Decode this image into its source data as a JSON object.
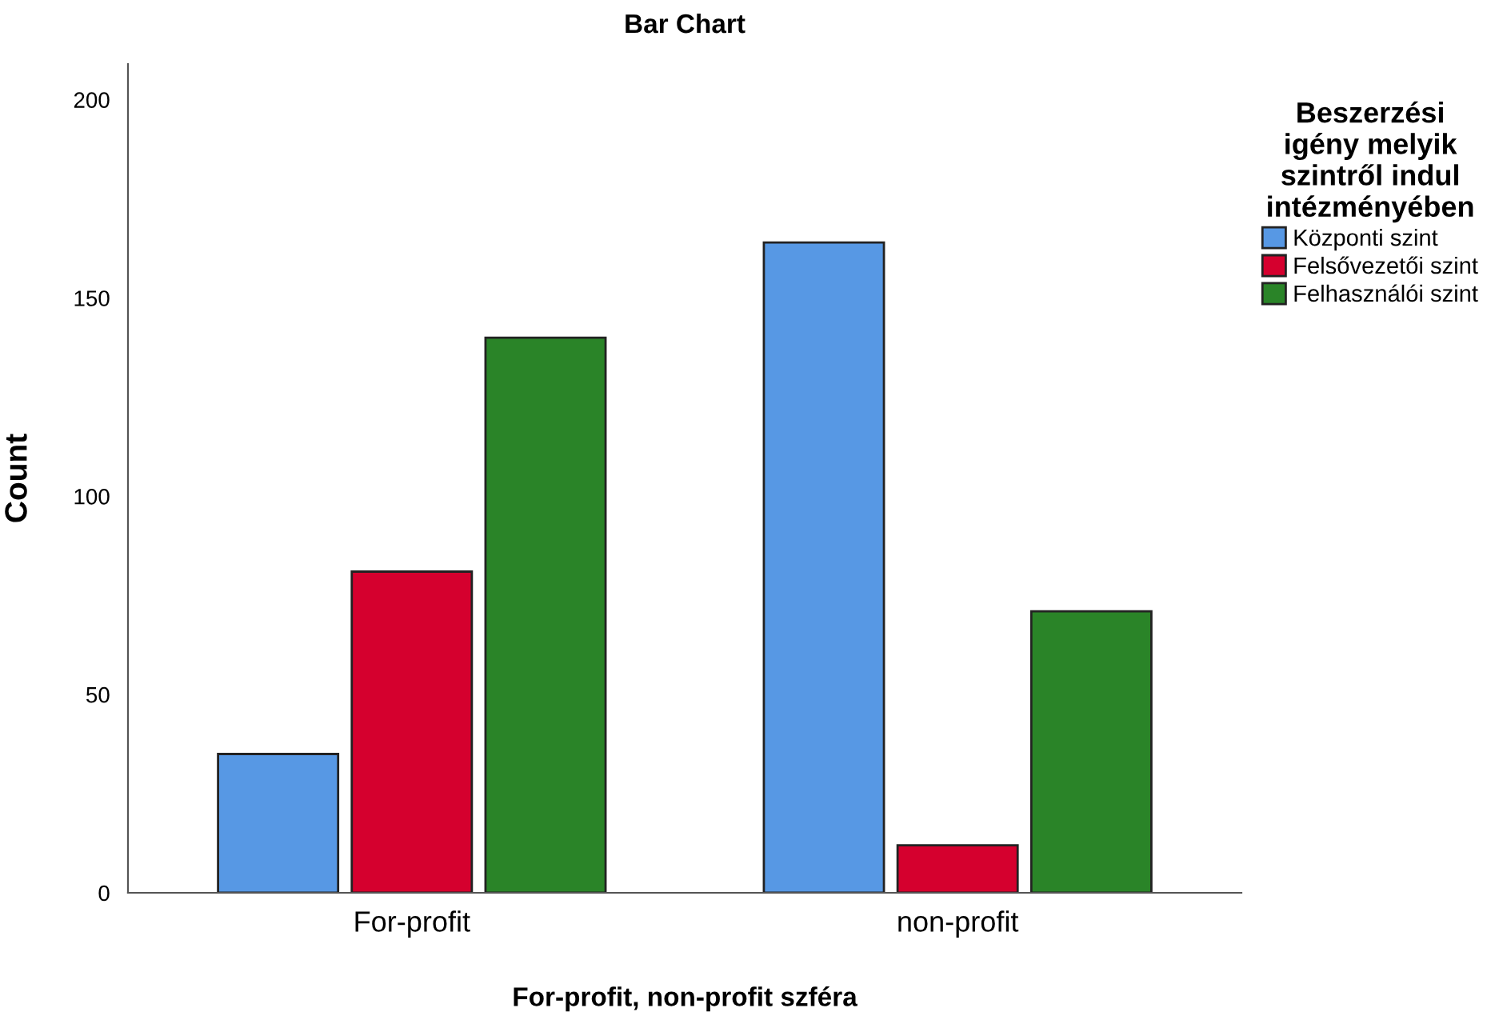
{
  "chart_data": {
    "type": "bar",
    "title": "Bar Chart",
    "xlabel": "For-profit, non-profit szféra",
    "ylabel": "Count",
    "legend_title": "Beszerzési\nigény melyik\nszintről indul\nintézményében",
    "categories": [
      "For-profit",
      "non-profit"
    ],
    "series": [
      {
        "name": "Központi szint",
        "color": "#5798e4",
        "values": [
          35,
          164
        ]
      },
      {
        "name": "Felsővezetői szint",
        "color": "#d5002e",
        "values": [
          81,
          12
        ]
      },
      {
        "name": "Felhasználói szint",
        "color": "#2a8428",
        "values": [
          140,
          71
        ]
      }
    ],
    "ylim": [
      0,
      209
    ],
    "yticks": [
      0,
      50,
      100,
      150,
      200
    ],
    "grid": false,
    "legend": "top right"
  }
}
